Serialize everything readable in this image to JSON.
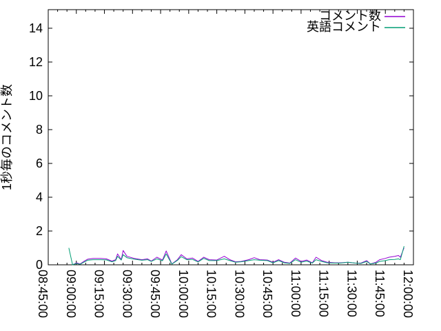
{
  "chart_data": {
    "type": "line",
    "title": "",
    "xlabel": "",
    "ylabel": "1秒毎のコメント数",
    "background": "#ffffff",
    "border_color": "#000000",
    "grid": false,
    "legend_position": "top-right-inside",
    "ylim": [
      0,
      15.1
    ],
    "y_ticks": [
      0,
      2,
      4,
      6,
      8,
      10,
      12,
      14
    ],
    "x_range": {
      "start": "08:45:00",
      "end": "12:00:00",
      "minutes": 195
    },
    "x_tick_labels": [
      "08:45:00",
      "09:00:00",
      "09:15:00",
      "09:30:00",
      "09:45:00",
      "10:00:00",
      "10:15:00",
      "10:30:00",
      "10:45:00",
      "11:00:00",
      "11:15:00",
      "11:30:00",
      "11:45:00",
      "12:00:00"
    ],
    "x_minor_tick_minutes": 5,
    "times": [
      "08:56",
      "08:58",
      "08:59",
      "09:00",
      "09:02",
      "09:04",
      "09:06",
      "09:09",
      "09:13",
      "09:16",
      "09:19",
      "09:21",
      "09:22",
      "09:24",
      "09:25",
      "09:27",
      "09:31",
      "09:35",
      "09:38",
      "09:40",
      "09:43",
      "09:46",
      "09:48",
      "09:51",
      "09:54",
      "09:56",
      "09:59",
      "10:02",
      "10:05",
      "10:08",
      "10:11",
      "10:15",
      "10:19",
      "10:22",
      "10:25",
      "10:28",
      "10:32",
      "10:35",
      "10:38",
      "10:42",
      "10:45",
      "10:48",
      "10:51",
      "10:54",
      "10:57",
      "11:00",
      "11:03",
      "11:06",
      "11:08",
      "11:11",
      "11:14",
      "11:18",
      "11:21",
      "11:25",
      "11:29",
      "11:32",
      "11:35",
      "11:37",
      "11:40",
      "11:42",
      "11:45",
      "11:47",
      "11:50",
      "11:52",
      "11:53",
      "11:55"
    ],
    "series": [
      {
        "name": "コメント数",
        "color": "#9400d3",
        "values": [
          null,
          0.02,
          0.05,
          0.12,
          0.05,
          0.2,
          0.33,
          0.38,
          0.38,
          0.35,
          0.22,
          0.3,
          0.65,
          0.3,
          0.85,
          0.5,
          0.38,
          0.3,
          0.35,
          0.22,
          0.45,
          0.28,
          0.82,
          0.05,
          0.3,
          0.6,
          0.35,
          0.4,
          0.2,
          0.45,
          0.3,
          0.28,
          0.5,
          0.3,
          0.18,
          0.2,
          0.3,
          0.42,
          0.3,
          0.28,
          0.15,
          0.3,
          0.15,
          0.1,
          0.4,
          0.2,
          0.28,
          0.12,
          0.45,
          0.25,
          0.15,
          0.12,
          0.12,
          0.15,
          0.1,
          0.1,
          0.25,
          0.05,
          0.15,
          0.3,
          0.38,
          0.45,
          0.5,
          0.55,
          0.45,
          1.0
        ]
      },
      {
        "name": "英語コメント",
        "color": "#009e73",
        "values": [
          1.0,
          0.0,
          0.04,
          0.08,
          0.03,
          0.15,
          0.27,
          0.3,
          0.3,
          0.29,
          0.18,
          0.25,
          0.5,
          0.28,
          0.6,
          0.42,
          0.33,
          0.27,
          0.3,
          0.2,
          0.35,
          0.24,
          0.65,
          0.04,
          0.26,
          0.48,
          0.3,
          0.32,
          0.17,
          0.38,
          0.25,
          0.25,
          0.35,
          0.25,
          0.15,
          0.18,
          0.25,
          0.3,
          0.27,
          0.25,
          0.12,
          0.25,
          0.12,
          0.08,
          0.3,
          0.15,
          0.22,
          0.1,
          0.3,
          0.2,
          0.12,
          0.1,
          0.1,
          0.15,
          0.1,
          0.08,
          0.2,
          0.05,
          0.1,
          0.2,
          0.25,
          0.3,
          0.32,
          0.35,
          0.3,
          1.1
        ]
      }
    ]
  }
}
